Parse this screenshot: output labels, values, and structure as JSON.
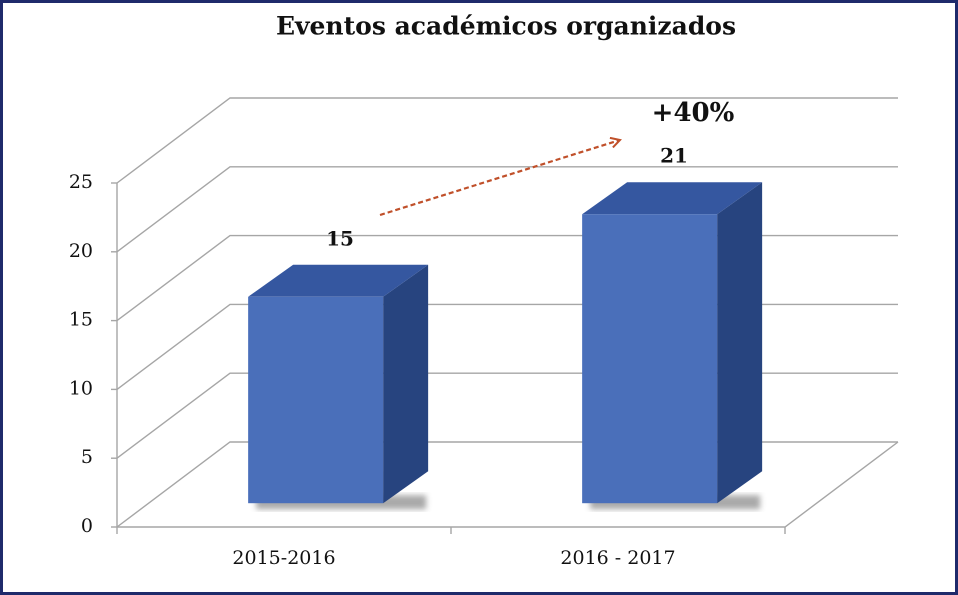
{
  "chart_data": {
    "type": "bar",
    "title": "Eventos académicos organizados",
    "categories": [
      "2015-2016",
      "2016 - 2017"
    ],
    "values": [
      15,
      21
    ],
    "color": "#4a6fba",
    "ylim": [
      0,
      25
    ],
    "yticks": [
      0,
      5,
      10,
      15,
      20,
      25
    ],
    "grid": true,
    "annotation": "+40%"
  }
}
